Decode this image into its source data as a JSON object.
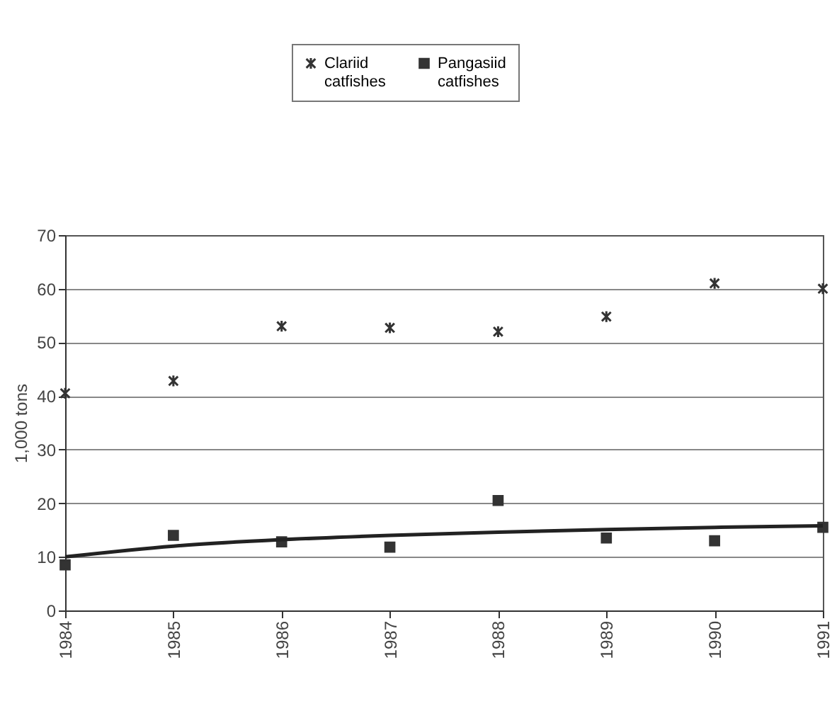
{
  "chart_data": {
    "type": "scatter",
    "ylabel": "1,000 tons",
    "x": [
      1984,
      1985,
      1986,
      1987,
      1988,
      1989,
      1990,
      1991
    ],
    "series": [
      {
        "name": "Clariid catfishes",
        "color": "#333333",
        "marker": "cross",
        "values": [
          40.5,
          42.8,
          53,
          52.7,
          52,
          54.8,
          61,
          60
        ]
      },
      {
        "name": "Pangasiid catfishes",
        "color": "#333333",
        "marker": "square",
        "values": [
          8.5,
          14,
          12.8,
          11.8,
          20.5,
          13.5,
          13,
          15.5
        ]
      },
      {
        "type": "line",
        "color": "#222222",
        "values": [
          10,
          12,
          13.2,
          14,
          14.6,
          15.1,
          15.5,
          15.8
        ]
      }
    ],
    "xlim": [
      1984,
      1991
    ],
    "xticks": [
      1984,
      1985,
      1986,
      1987,
      1988,
      1989,
      1990,
      1991
    ],
    "ylim": [
      0,
      70
    ],
    "yticks": [
      0,
      10,
      20,
      30,
      40,
      50,
      60,
      70
    ],
    "grid": "y",
    "legend": "top"
  }
}
